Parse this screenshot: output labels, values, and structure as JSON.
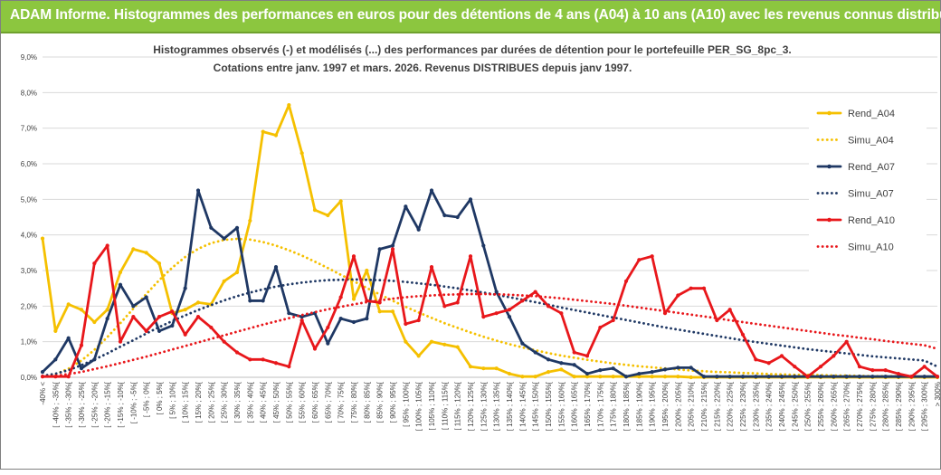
{
  "header": {
    "title": "ADAM Informe. Histogrammes des performances en euros pour des détentions de 4 ans (A04) à 10 ans (A10) avec les revenus connus distribués"
  },
  "chart_data": {
    "type": "line",
    "title_line1": "Histogrammes observés (-) et modélisés (...) des performances  par durées de détention pour le portefeuille PER_SG_8pc_3.",
    "title_line2": "Cotations entre janv. 1997 et mars. 2026. Revenus DISTRIBUES depuis janv 1997.",
    "ylim": [
      0,
      9
    ],
    "yticks": [
      "0,0%",
      "1,0%",
      "2,0%",
      "3,0%",
      "4,0%",
      "5,0%",
      "6,0%",
      "7,0%",
      "8,0%",
      "9,0%"
    ],
    "categories": [
      "-40% <",
      "[ -40% ; -35%[",
      "[ -35% ; -30%[",
      "[ -30% ; -25%[",
      "[ -25% ; -20%[",
      "[ -20% ; -15%[",
      "[ -15% ; -10%[",
      "[ -10% ; -5%[",
      "[ -5% ; 0%[",
      "[ 0% ; 5%[",
      "[ 5% ; 10%[",
      "[ 10% ; 15%[",
      "[ 15% ; 20%[",
      "[ 20% ; 25%[",
      "[ 25% ; 30%[",
      "[ 30% ; 35%[",
      "[ 35% ; 40%[",
      "[ 40% ; 45%[",
      "[ 45% ; 50%[",
      "[ 50% ; 55%[",
      "[ 55% ; 60%[",
      "[ 60% ; 65%[",
      "[ 65% ; 70%[",
      "[ 70% ; 75%[",
      "[ 75% ; 80%[",
      "[ 80% ; 85%[",
      "[ 85% ; 90%[",
      "[ 90% ; 95%[",
      "[ 95% ; 100%[",
      "[ 100% ; 105%[",
      "[ 105% ; 110%[",
      "[ 110% ; 115%[",
      "[ 115% ; 120%[",
      "[ 120% ; 125%[",
      "[ 125% ; 130%[",
      "[ 130% ; 135%[",
      "[ 135% ; 140%[",
      "[ 140% ; 145%[",
      "[ 145% ; 150%[",
      "[ 150% ; 155%[",
      "[ 155% ; 160%[",
      "[ 160% ; 165%[",
      "[ 165% ; 170%[",
      "[ 170% ; 175%[",
      "[ 175% ; 180%[",
      "[ 180% ; 185%[",
      "[ 185% ; 190%[",
      "[ 190% ; 195%[",
      "[ 195% ; 200%[",
      "[ 200% ; 205%[",
      "[ 205% ; 210%[",
      "[ 210% ; 215%[",
      "[ 215% ; 220%[",
      "[ 220% ; 225%[",
      "[ 225% ; 230%[",
      "[ 230% ; 235%[",
      "[ 235% ; 240%[",
      "[ 240% ; 245%[",
      "[ 245% ; 250%[",
      "[ 250% ; 255%[",
      "[ 255% ; 260%[",
      "[ 260% ; 265%[",
      "[ 265% ; 270%[",
      "[ 270% ; 275%[",
      "[ 275% ; 280%[",
      "[ 280% ; 285%[",
      "[ 285% ; 290%[",
      "[ 290% ; 295%[",
      "[ 295% ; 300%[",
      "> 300%"
    ],
    "series": [
      {
        "name": "Rend_A04",
        "style": "solid",
        "color": "#f5c000",
        "values": [
          3.9,
          1.3,
          2.05,
          1.9,
          1.55,
          1.9,
          2.95,
          3.6,
          3.5,
          3.2,
          1.8,
          1.9,
          2.1,
          2.05,
          2.7,
          2.95,
          4.4,
          6.9,
          6.8,
          7.65,
          6.3,
          4.7,
          4.55,
          4.95,
          2.2,
          3.0,
          1.85,
          1.85,
          1.0,
          0.6,
          1.0,
          0.92,
          0.85,
          0.3,
          0.25,
          0.25,
          0.1,
          0.02,
          0.02,
          0.15,
          0.22,
          0.02,
          0.02,
          0.02,
          0.02,
          0.02,
          0.02,
          0.02,
          0.02,
          0.02,
          0,
          0,
          0,
          0,
          0,
          0,
          0,
          0,
          0,
          0,
          0,
          0,
          0,
          0,
          0,
          0,
          0,
          0,
          0,
          0
        ]
      },
      {
        "name": "Simu_A04",
        "style": "dotted",
        "color": "#f5c000",
        "values": [
          0.02,
          0.09,
          0.24,
          0.47,
          0.77,
          1.13,
          1.52,
          1.93,
          2.34,
          2.73,
          3.08,
          3.38,
          3.61,
          3.77,
          3.86,
          3.89,
          3.87,
          3.8,
          3.7,
          3.57,
          3.42,
          3.25,
          3.07,
          2.88,
          2.7,
          2.51,
          2.33,
          2.15,
          1.98,
          1.82,
          1.67,
          1.52,
          1.39,
          1.26,
          1.14,
          1.03,
          0.93,
          0.84,
          0.76,
          0.68,
          0.61,
          0.55,
          0.49,
          0.44,
          0.39,
          0.35,
          0.31,
          0.28,
          0.25,
          0.22,
          0.19,
          0.17,
          0.15,
          0.14,
          0.12,
          0.11,
          0.09,
          0.08,
          0.07,
          0.07,
          0.06,
          0.05,
          0.05,
          0.04,
          0.03,
          0.03,
          0.03,
          0.02,
          0.02,
          0.02
        ]
      },
      {
        "name": "Rend_A07",
        "style": "solid",
        "color": "#1f3864",
        "values": [
          0.15,
          0.5,
          1.1,
          0.25,
          0.5,
          1.65,
          2.6,
          2.0,
          2.25,
          1.3,
          1.45,
          2.5,
          5.25,
          4.2,
          3.9,
          4.2,
          2.15,
          2.15,
          3.1,
          1.8,
          1.7,
          1.8,
          0.95,
          1.65,
          1.55,
          1.65,
          3.6,
          3.7,
          4.8,
          4.15,
          5.25,
          4.55,
          4.5,
          5.0,
          3.7,
          2.4,
          1.7,
          0.95,
          0.7,
          0.5,
          0.4,
          0.35,
          0.1,
          0.2,
          0.25,
          0.02,
          0.1,
          0.15,
          0.22,
          0.27,
          0.27,
          0.02,
          0.02,
          0.02,
          0.02,
          0.02,
          0.02,
          0.02,
          0.02,
          0.02,
          0.02,
          0.02,
          0.02,
          0.02,
          0.02,
          0.02,
          0.02,
          0.02,
          0.02,
          0.02
        ]
      },
      {
        "name": "Simu_A07",
        "style": "dotted",
        "color": "#1f3864",
        "values": [
          0.04,
          0.1,
          0.2,
          0.34,
          0.5,
          0.67,
          0.86,
          1.04,
          1.23,
          1.41,
          1.58,
          1.74,
          1.89,
          2.03,
          2.16,
          2.28,
          2.38,
          2.47,
          2.55,
          2.61,
          2.66,
          2.7,
          2.73,
          2.74,
          2.75,
          2.74,
          2.73,
          2.71,
          2.68,
          2.64,
          2.6,
          2.55,
          2.5,
          2.44,
          2.38,
          2.32,
          2.25,
          2.18,
          2.11,
          2.04,
          1.96,
          1.89,
          1.82,
          1.75,
          1.68,
          1.61,
          1.54,
          1.47,
          1.4,
          1.34,
          1.28,
          1.22,
          1.16,
          1.1,
          1.04,
          0.99,
          0.94,
          0.89,
          0.84,
          0.79,
          0.75,
          0.71,
          0.67,
          0.63,
          0.59,
          0.56,
          0.53,
          0.5,
          0.47,
          0.3
        ]
      },
      {
        "name": "Rend_A10",
        "style": "solid",
        "color": "#e8171b",
        "values": [
          0.02,
          0.02,
          0.02,
          0.9,
          3.2,
          3.7,
          1.0,
          1.7,
          1.3,
          1.7,
          1.85,
          1.2,
          1.7,
          1.4,
          1.0,
          0.7,
          0.5,
          0.5,
          0.4,
          0.3,
          1.6,
          0.8,
          1.4,
          2.25,
          3.4,
          2.15,
          2.1,
          3.6,
          1.5,
          1.6,
          3.1,
          2.0,
          2.1,
          3.4,
          1.7,
          1.8,
          1.9,
          2.15,
          2.4,
          2.0,
          1.8,
          0.7,
          0.6,
          1.4,
          1.6,
          2.7,
          3.3,
          3.4,
          1.8,
          2.3,
          2.5,
          2.5,
          1.6,
          1.9,
          1.2,
          0.5,
          0.4,
          0.6,
          0.3,
          0.02,
          0.3,
          0.6,
          1.0,
          0.3,
          0.2,
          0.2,
          0.1,
          0.02,
          0.3,
          0.02
        ]
      },
      {
        "name": "Simu_A10",
        "style": "dotted",
        "color": "#e8171b",
        "values": [
          0.01,
          0.04,
          0.09,
          0.15,
          0.23,
          0.31,
          0.4,
          0.49,
          0.58,
          0.68,
          0.78,
          0.88,
          0.98,
          1.08,
          1.18,
          1.28,
          1.38,
          1.48,
          1.57,
          1.66,
          1.75,
          1.83,
          1.91,
          1.98,
          2.05,
          2.11,
          2.16,
          2.21,
          2.25,
          2.28,
          2.3,
          2.32,
          2.33,
          2.34,
          2.34,
          2.33,
          2.32,
          2.3,
          2.28,
          2.25,
          2.22,
          2.18,
          2.14,
          2.1,
          2.06,
          2.01,
          1.96,
          1.91,
          1.86,
          1.81,
          1.76,
          1.71,
          1.66,
          1.6,
          1.55,
          1.5,
          1.45,
          1.4,
          1.35,
          1.3,
          1.25,
          1.2,
          1.16,
          1.11,
          1.07,
          1.02,
          0.98,
          0.94,
          0.9,
          0.8
        ]
      }
    ],
    "legend_position": "right",
    "grid": "horizontal"
  }
}
